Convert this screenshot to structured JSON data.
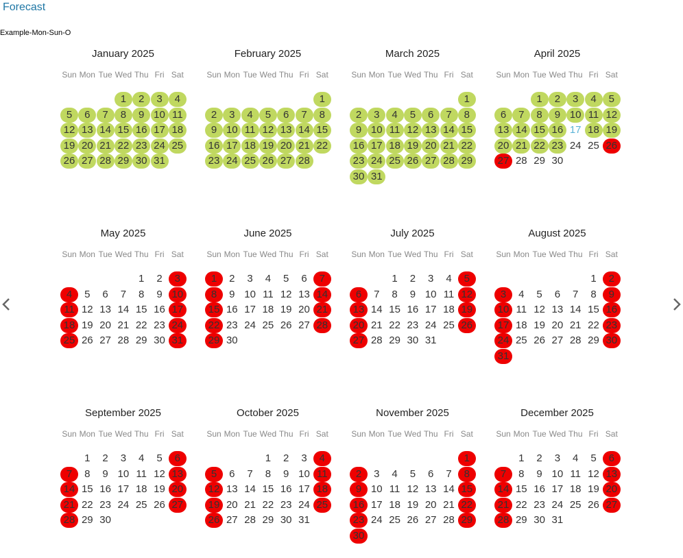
{
  "header": {
    "tab": "Forecast",
    "calendar_name": "Example-Mon-Sun-O"
  },
  "weekdays": [
    "Sun",
    "Mon",
    "Tue",
    "Wed",
    "Thu",
    "Fri",
    "Sat"
  ],
  "colors": {
    "available": "#c0d860",
    "booked": "#ee0000",
    "today": "#5bb4d8",
    "link": "#1f77a5"
  },
  "nav": {
    "prev_icon": "chevron-left-icon",
    "next_icon": "chevron-right-icon"
  },
  "months": [
    {
      "title": "January 2025",
      "first_weekday": 3,
      "days": 31,
      "available": [
        1,
        2,
        3,
        4,
        5,
        6,
        7,
        8,
        9,
        10,
        11,
        12,
        13,
        14,
        15,
        16,
        17,
        18,
        19,
        20,
        21,
        22,
        23,
        24,
        25,
        26,
        27,
        28,
        29,
        30,
        31
      ],
      "booked": []
    },
    {
      "title": "February 2025",
      "first_weekday": 6,
      "days": 28,
      "available": [
        1,
        2,
        3,
        4,
        5,
        6,
        7,
        8,
        9,
        10,
        11,
        12,
        13,
        14,
        15,
        16,
        17,
        18,
        19,
        20,
        21,
        22,
        23,
        24,
        25,
        26,
        27,
        28
      ],
      "booked": []
    },
    {
      "title": "March 2025",
      "first_weekday": 6,
      "days": 31,
      "available": [
        1,
        2,
        3,
        4,
        5,
        6,
        7,
        8,
        9,
        10,
        11,
        12,
        13,
        14,
        15,
        16,
        17,
        18,
        19,
        20,
        21,
        22,
        23,
        24,
        25,
        26,
        27,
        28,
        29,
        30,
        31
      ],
      "booked": []
    },
    {
      "title": "April 2025",
      "first_weekday": 2,
      "days": 30,
      "available": [
        1,
        2,
        3,
        4,
        5,
        6,
        7,
        8,
        9,
        10,
        11,
        12,
        13,
        14,
        15,
        16,
        18,
        19,
        20,
        21,
        22,
        23
      ],
      "booked": [
        26,
        27
      ],
      "today": 17
    },
    {
      "title": "May 2025",
      "first_weekday": 4,
      "days": 31,
      "available": [],
      "booked": [
        3,
        4,
        10,
        11,
        17,
        18,
        24,
        25,
        31
      ]
    },
    {
      "title": "June 2025",
      "first_weekday": 0,
      "days": 30,
      "available": [],
      "booked": [
        1,
        7,
        8,
        14,
        15,
        21,
        22,
        28,
        29
      ]
    },
    {
      "title": "July 2025",
      "first_weekday": 2,
      "days": 31,
      "available": [],
      "booked": [
        5,
        6,
        12,
        13,
        19,
        20,
        26,
        27
      ]
    },
    {
      "title": "August 2025",
      "first_weekday": 5,
      "days": 31,
      "available": [],
      "booked": [
        2,
        3,
        9,
        10,
        16,
        17,
        23,
        24,
        30,
        31
      ]
    },
    {
      "title": "September 2025",
      "first_weekday": 1,
      "days": 30,
      "available": [],
      "booked": [
        6,
        7,
        13,
        14,
        20,
        21,
        27,
        28
      ]
    },
    {
      "title": "October 2025",
      "first_weekday": 3,
      "days": 31,
      "available": [],
      "booked": [
        4,
        5,
        11,
        12,
        18,
        19,
        25,
        26
      ]
    },
    {
      "title": "November 2025",
      "first_weekday": 6,
      "days": 30,
      "available": [],
      "booked": [
        1,
        2,
        8,
        9,
        15,
        16,
        22,
        23,
        29,
        30
      ]
    },
    {
      "title": "December 2025",
      "first_weekday": 1,
      "days": 31,
      "available": [],
      "booked": [
        6,
        7,
        13,
        14,
        20,
        21,
        27,
        28
      ]
    }
  ]
}
